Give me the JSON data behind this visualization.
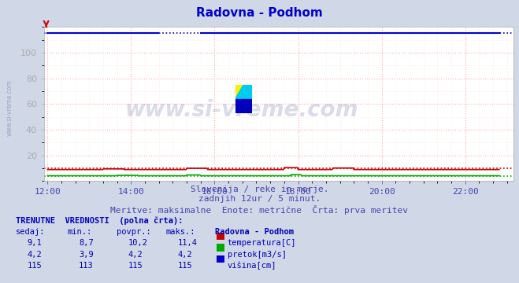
{
  "title": "Radovna - Podhom",
  "title_color": "#0000cc",
  "bg_color": "#d0d8e8",
  "plot_bg_color": "#ffffff",
  "grid_color_major": "#ffaaaa",
  "grid_color_minor": "#ffdddd",
  "watermark_text": "www.si-vreme.com",
  "subtitle1": "Slovenija / reke in morje.",
  "subtitle2": "zadnjih 12ur / 5 minut.",
  "subtitle3": "Meritve: maksimalne  Enote: metrične  Črta: prva meritev",
  "xlabel_color": "#4444aa",
  "ylim": [
    0,
    120
  ],
  "xtick_labels": [
    "12:00",
    "14:00",
    "16:00",
    "18:00",
    "20:00",
    "22:00"
  ],
  "xtick_positions": [
    0,
    120,
    240,
    360,
    480,
    600
  ],
  "xmin": -5,
  "xmax": 670,
  "temperatura_color": "#cc0000",
  "pretok_color": "#00aa00",
  "visina_color": "#0000cc",
  "legend_label1": "temperatura[C]",
  "legend_label2": "pretok[m3/s]",
  "legend_label3": "višina[cm]",
  "legend_color1": "#cc0000",
  "legend_color2": "#00aa00",
  "legend_color3": "#0000cc",
  "table_title": "TRENUTNE  VREDNOSTI  (polna črta):",
  "col_headers": [
    "sedaj:",
    "min.:",
    "povpr.:",
    "maks.:",
    "Radovna - Podhom"
  ],
  "row1": [
    "9,1",
    "8,7",
    "10,2",
    "11,4"
  ],
  "row2": [
    "4,2",
    "3,9",
    "4,2",
    "4,2"
  ],
  "row3": [
    "115",
    "113",
    "115",
    "115"
  ],
  "n_points": 650,
  "side_label": "www.si-vreme.com"
}
